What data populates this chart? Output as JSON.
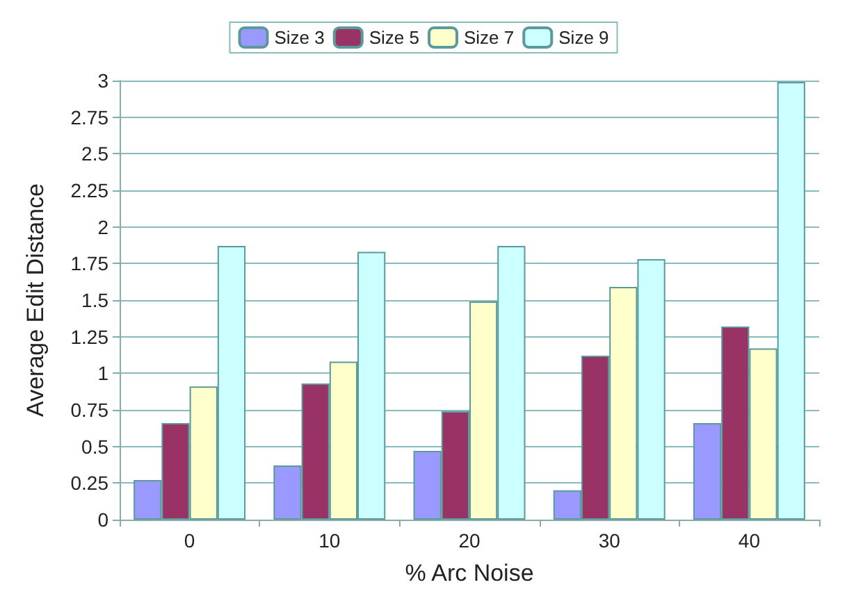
{
  "chart_data": {
    "type": "bar",
    "xlabel": "% Arc Noise",
    "ylabel": "Average Edit Distance",
    "categories": [
      "0",
      "10",
      "20",
      "30",
      "40"
    ],
    "series": [
      {
        "name": "Size 3",
        "color": "#9999ff",
        "values": [
          0.27,
          0.37,
          0.47,
          0.2,
          0.66
        ]
      },
      {
        "name": "Size 5",
        "color": "#993366",
        "values": [
          0.66,
          0.93,
          0.74,
          1.12,
          1.32
        ]
      },
      {
        "name": "Size 7",
        "color": "#ffffcc",
        "values": [
          0.91,
          1.08,
          1.49,
          1.59,
          1.17
        ]
      },
      {
        "name": "Size 9",
        "color": "#ccffff",
        "values": [
          1.87,
          1.83,
          1.87,
          1.78,
          2.99
        ]
      }
    ],
    "ylim": [
      0,
      3
    ],
    "yticks": [
      0,
      0.25,
      0.5,
      0.75,
      1,
      1.25,
      1.5,
      1.75,
      2,
      2.25,
      2.5,
      2.75,
      3
    ],
    "grid": "y",
    "legend": "top"
  }
}
